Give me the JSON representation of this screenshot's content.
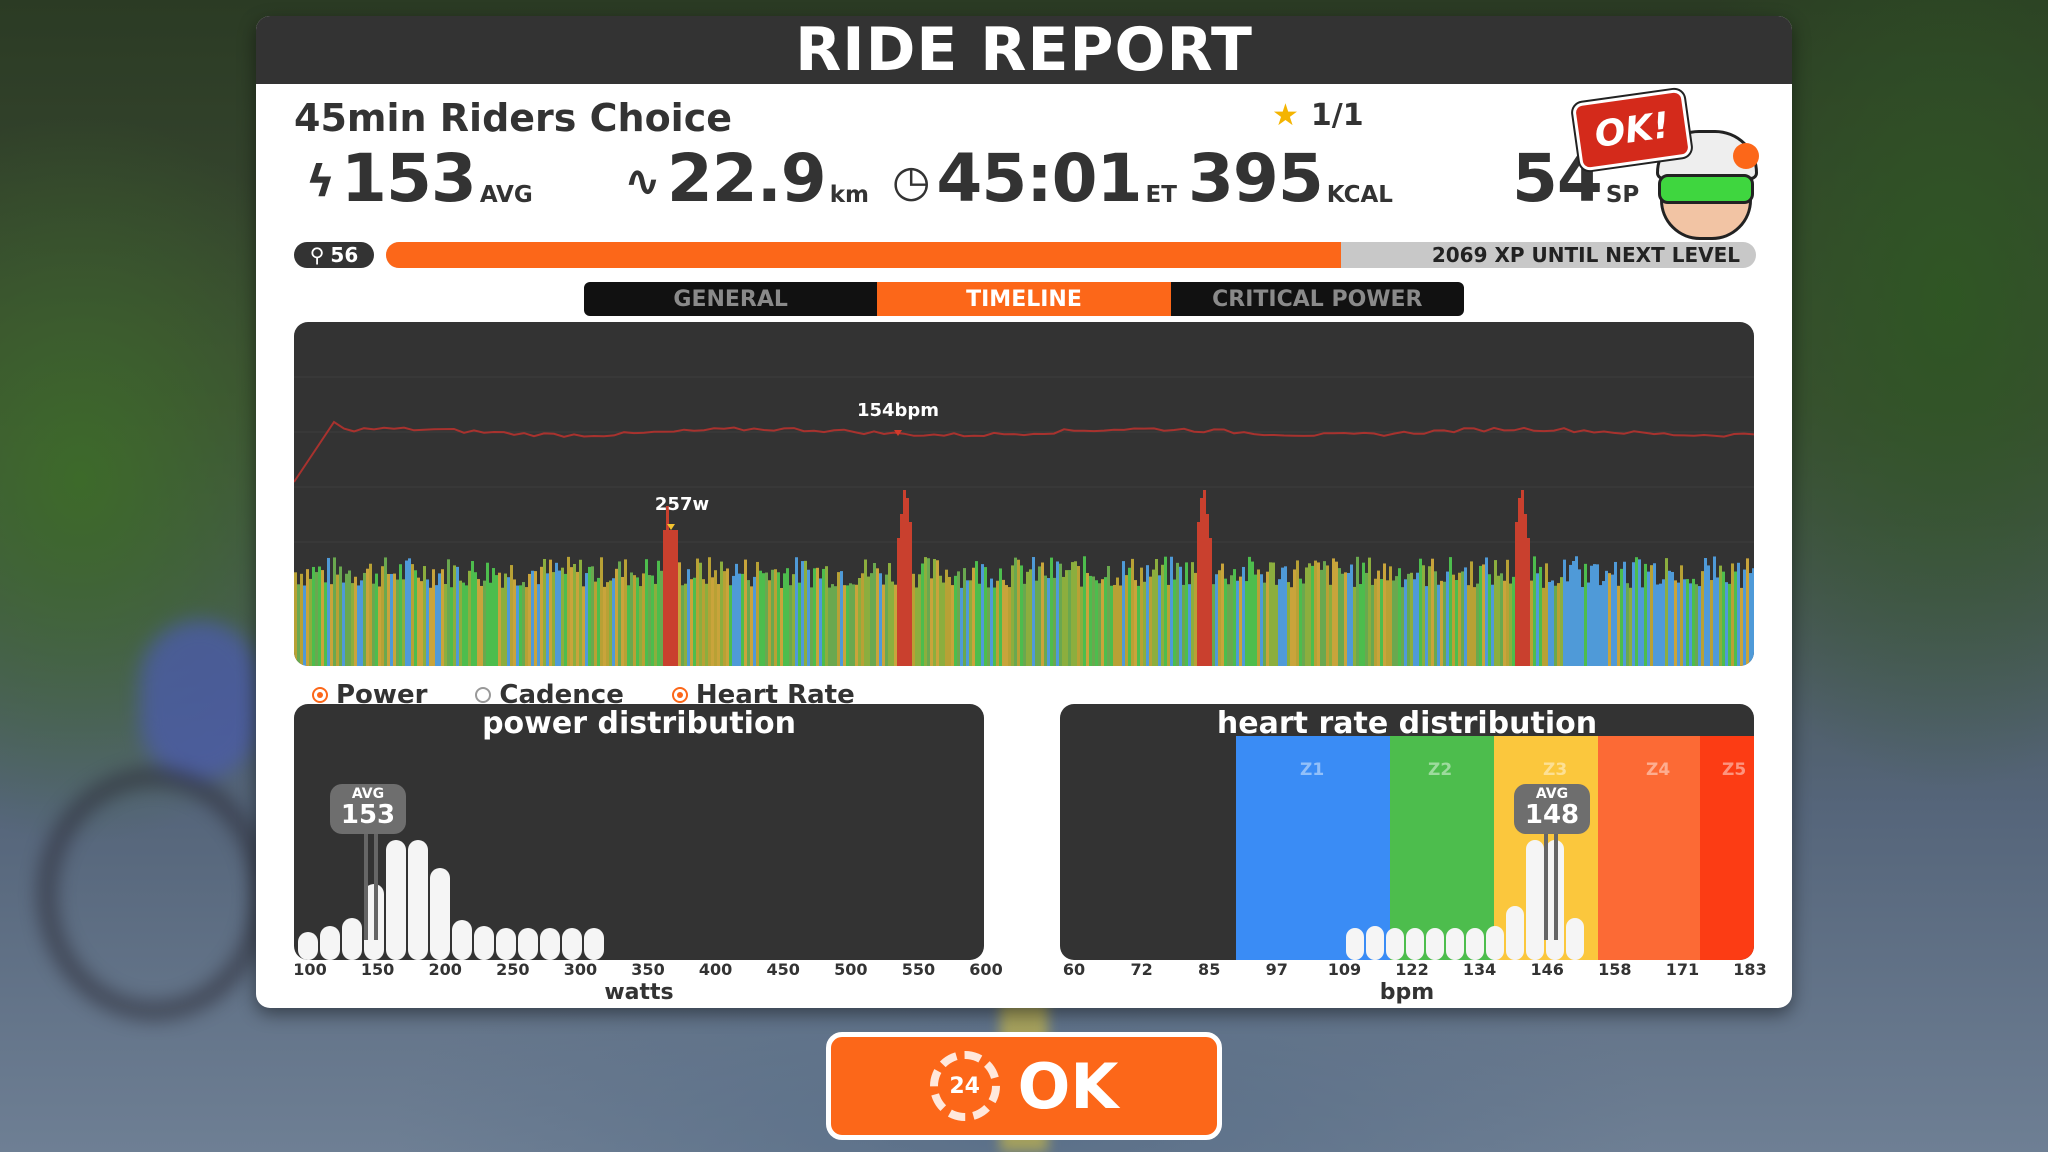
{
  "report": {
    "title": "RIDE REPORT",
    "workout_name": "45min Riders Choice",
    "stars": "1/1",
    "avatar_bubble": "OK!"
  },
  "stats": {
    "power": {
      "value": "153",
      "unit": "AVG",
      "icon": "lightning-icon"
    },
    "distance": {
      "value": "22.9",
      "unit": "km",
      "icon": "route-icon"
    },
    "time": {
      "value": "45:01",
      "unit": "ET",
      "icon": "clock-icon"
    },
    "calories": {
      "value": "395",
      "unit": "KCAL"
    },
    "sport_points": {
      "value": "54",
      "unit": "SP"
    }
  },
  "level": {
    "value": "56",
    "icon": "bike-icon",
    "xp_progress": 0.697,
    "xp_label": "2069 XP UNTIL NEXT LEVEL"
  },
  "tabs": [
    {
      "label": "GENERAL",
      "active": false
    },
    {
      "label": "TIMELINE",
      "active": true
    },
    {
      "label": "CRITICAL POWER",
      "active": false
    }
  ],
  "timeline": {
    "hr_peak_label": "154bpm",
    "power_peak_label": "257w"
  },
  "legend": [
    {
      "label": "Power",
      "selected": true
    },
    {
      "label": "Cadence",
      "selected": false
    },
    {
      "label": "Heart Rate",
      "selected": true
    }
  ],
  "power_distribution": {
    "title": "power distribution",
    "axis_label": "watts",
    "ticks": [
      "100",
      "150",
      "200",
      "250",
      "300",
      "350",
      "400",
      "450",
      "500",
      "550",
      "600"
    ],
    "avg_label": "AVG",
    "avg_value": "153"
  },
  "hr_distribution": {
    "title": "heart rate distribution",
    "axis_label": "bpm",
    "ticks": [
      "60",
      "72",
      "85",
      "97",
      "109",
      "122",
      "134",
      "146",
      "158",
      "171",
      "183"
    ],
    "zones": [
      "Z1",
      "Z2",
      "Z3",
      "Z4",
      "Z5"
    ],
    "avg_label": "AVG",
    "avg_value": "148"
  },
  "ok_button": {
    "countdown": "24",
    "label": "OK"
  },
  "colors": {
    "accent": "#fc6719",
    "panel_header": "#333333",
    "zone1": "#3a8cf5",
    "zone2": "#4dbd4d",
    "zone3": "#fbc73d",
    "zone4": "#fc6a35",
    "zone5": "#fc3c14",
    "hr_line": "#a8322e"
  }
}
